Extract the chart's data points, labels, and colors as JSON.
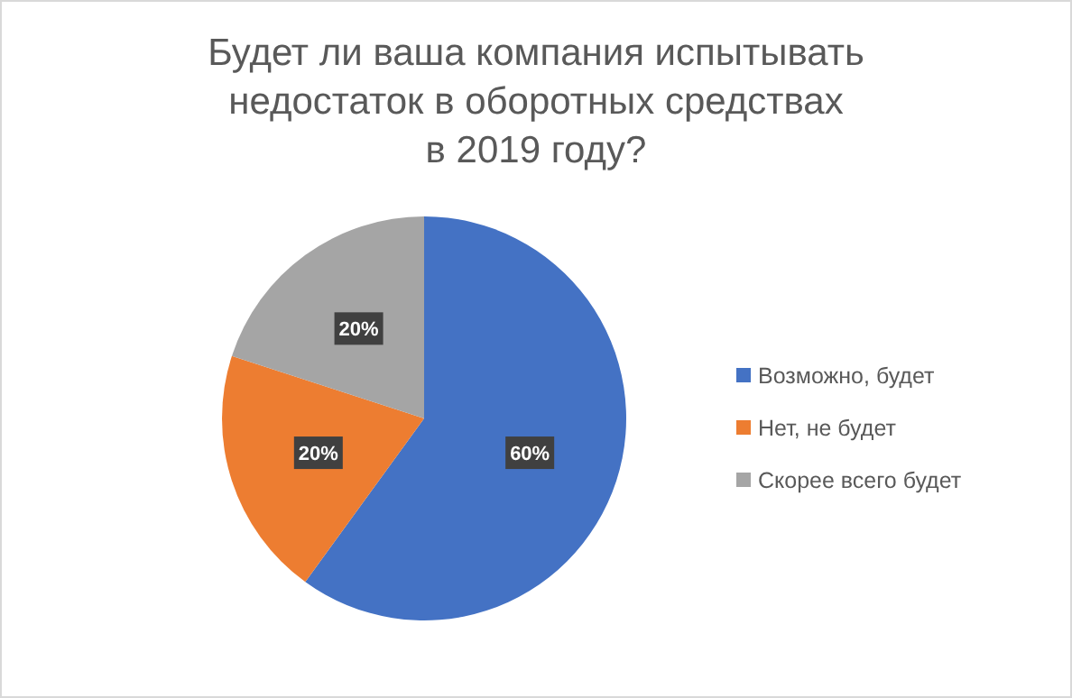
{
  "chart_data": {
    "type": "pie",
    "title": "Будет ли ваша компания испытывать недостаток в оборотных средствах в 2019 году?",
    "categories": [
      "Возможно, будет",
      "Нет, не будет",
      "Скорее всего будет"
    ],
    "values": [
      60,
      20,
      20
    ],
    "colors": [
      "#4472c4",
      "#ed7d31",
      "#a5a5a5"
    ],
    "value_labels": [
      "60%",
      "20%",
      "20%"
    ],
    "legend": "right"
  }
}
